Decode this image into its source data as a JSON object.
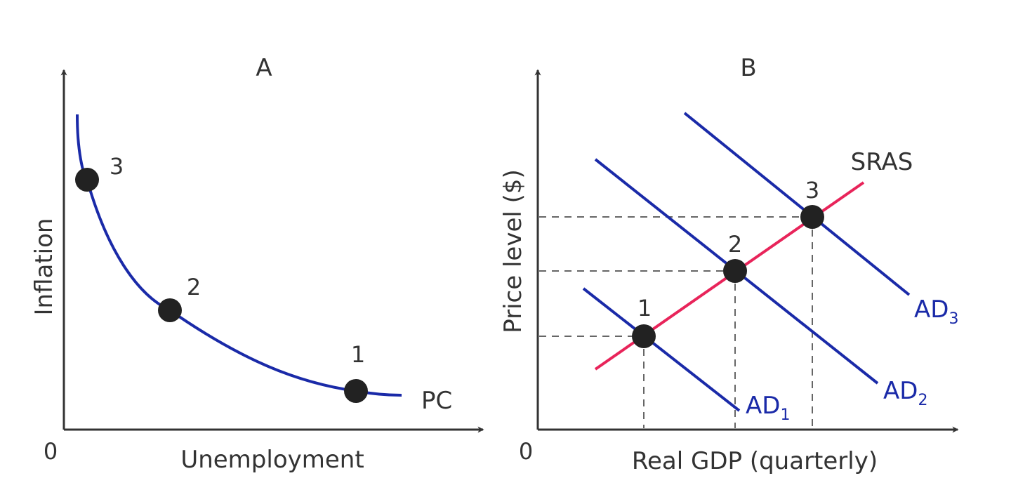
{
  "colors": {
    "axis": "#333333",
    "curve": "#1a2aa8",
    "sras": "#e8245a",
    "point": "#222222",
    "guide": "#666666"
  },
  "panel_a": {
    "title": "A",
    "origin_label": "0",
    "x_label": "Unemployment",
    "y_label": "Inflation",
    "curve_label": "PC",
    "points": [
      {
        "label": "1",
        "unemployment": 8.1,
        "inflation": 1.1
      },
      {
        "label": "2",
        "unemployment": 3.3,
        "inflation": 3.5
      },
      {
        "label": "3",
        "unemployment": 0.7,
        "inflation": 7.0
      }
    ]
  },
  "panel_b": {
    "title": "B",
    "origin_label": "0",
    "x_label": "Real GDP (quarterly)",
    "y_label": "Price level ($)",
    "sras_label": "SRAS",
    "ad_curves": [
      {
        "main": "AD",
        "sub": "1"
      },
      {
        "main": "AD",
        "sub": "2"
      },
      {
        "main": "AD",
        "sub": "3"
      }
    ],
    "equilibria": [
      {
        "label": "1",
        "real_gdp": 2.5,
        "price_level": 2.6
      },
      {
        "label": "2",
        "real_gdp": 4.6,
        "price_level": 4.5
      },
      {
        "label": "3",
        "real_gdp": 6.3,
        "price_level": 6.0
      }
    ]
  }
}
